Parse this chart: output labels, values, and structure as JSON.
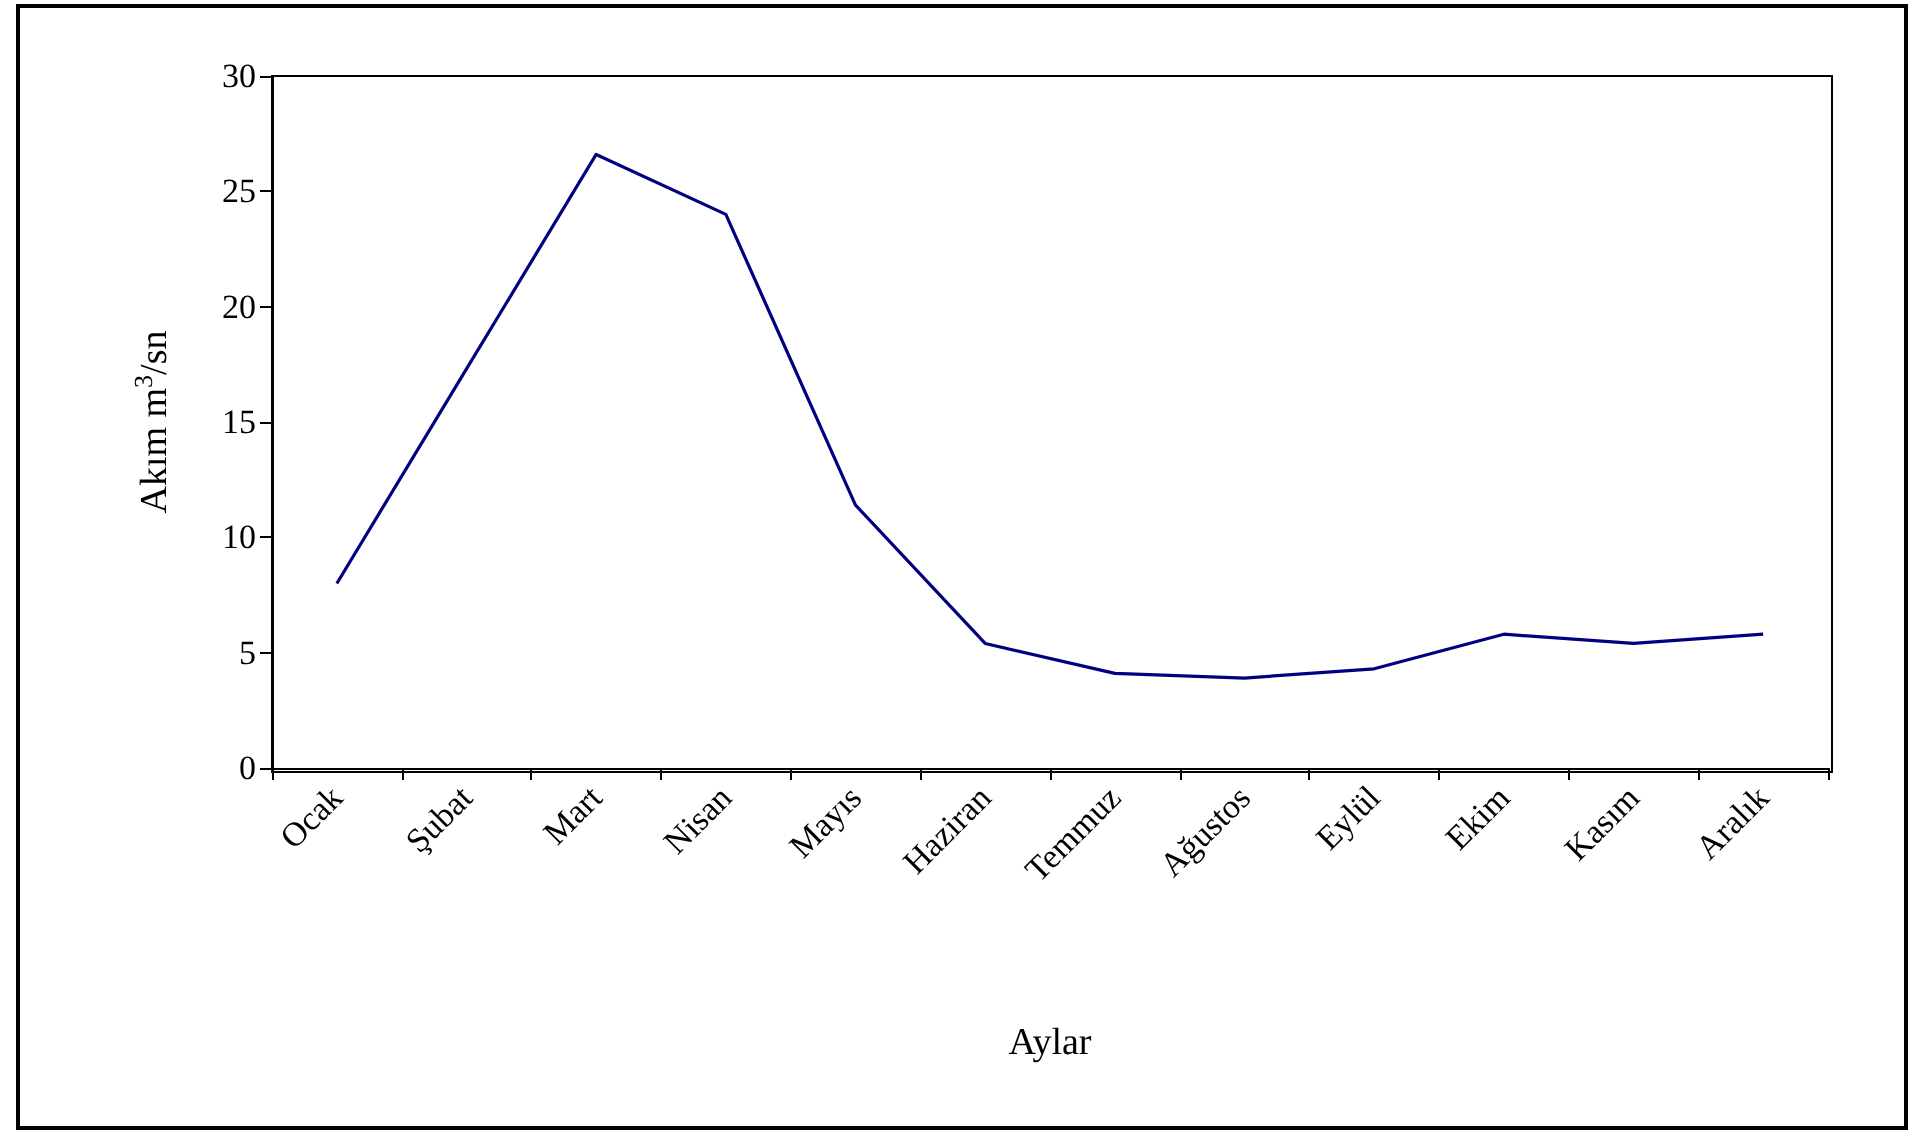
{
  "chart_data": {
    "type": "line",
    "xlabel": "Aylar",
    "ylabel": "Akım m$^{3}$/sn",
    "categories": [
      "Ocak",
      "Şubat",
      "Mart",
      "Nisan",
      "Mayıs",
      "Haziran",
      "Temmuz",
      "Ağustos",
      "Eylül",
      "Ekim",
      "Kasım",
      "Aralık"
    ],
    "series": [
      {
        "color": "#000080",
        "values": [
          8.0,
          17.3,
          26.6,
          24.0,
          11.4,
          5.4,
          4.1,
          3.9,
          4.3,
          5.8,
          5.4,
          5.8
        ]
      }
    ],
    "ylim": [
      0,
      30
    ],
    "yticks": [
      0,
      5,
      10,
      15,
      20,
      25,
      30
    ],
    "grid": false,
    "marker": "none",
    "line_style": "solid"
  }
}
